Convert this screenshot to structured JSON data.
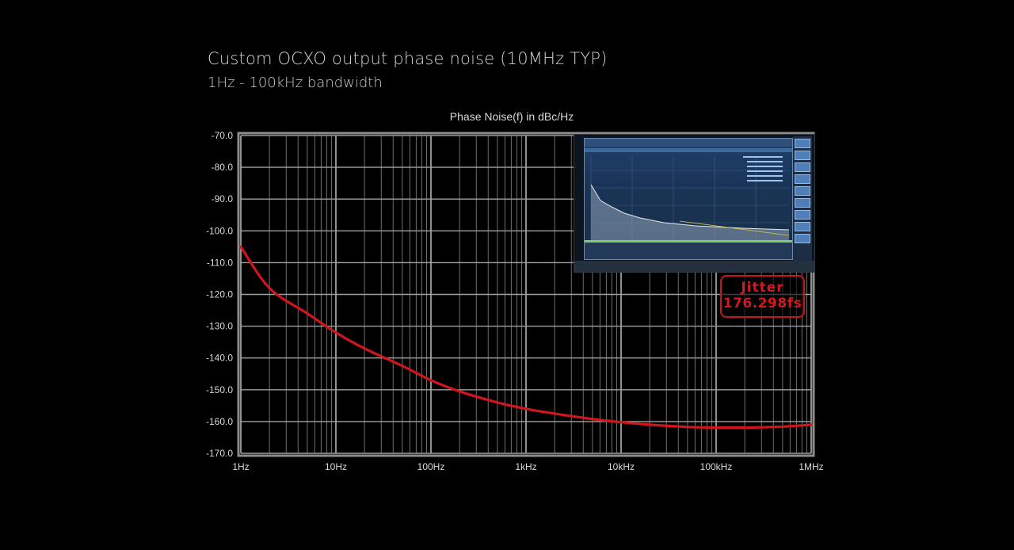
{
  "header": {
    "title": "Custom OCXO output phase noise (10MHz TYP)",
    "subtitle": "1Hz - 100kHz bandwidth"
  },
  "chart_data": {
    "type": "line",
    "title": "Phase Noise(f) in dBc/Hz",
    "xlabel": "",
    "ylabel": "",
    "x_scale": "log",
    "xlim": [
      1,
      1000000
    ],
    "ylim": [
      -170,
      -70
    ],
    "x_ticks": [
      {
        "value": 1,
        "label": "1Hz"
      },
      {
        "value": 10,
        "label": "10Hz"
      },
      {
        "value": 100,
        "label": "100Hz"
      },
      {
        "value": 1000,
        "label": "1kHz"
      },
      {
        "value": 10000,
        "label": "10kHz"
      },
      {
        "value": 100000,
        "label": "100kHz"
      },
      {
        "value": 1000000,
        "label": "1MHz"
      }
    ],
    "y_ticks": [
      {
        "value": -70,
        "label": "-70.0"
      },
      {
        "value": -80,
        "label": "-80.0"
      },
      {
        "value": -90,
        "label": "-90.0"
      },
      {
        "value": -100,
        "label": "-100.0"
      },
      {
        "value": -110,
        "label": "-110.0"
      },
      {
        "value": -120,
        "label": "-120.0"
      },
      {
        "value": -130,
        "label": "-130.0"
      },
      {
        "value": -140,
        "label": "-140.0"
      },
      {
        "value": -150,
        "label": "-150.0"
      },
      {
        "value": -160,
        "label": "-160.0"
      },
      {
        "value": -170,
        "label": "-170.0"
      }
    ],
    "grid": true,
    "series": [
      {
        "color": "#d0161c",
        "x": [
          1,
          2,
          5,
          10,
          20,
          50,
          100,
          200,
          500,
          1000,
          2000,
          5000,
          10000,
          20000,
          50000,
          100000,
          200000,
          500000,
          1000000
        ],
        "y": [
          -105,
          -118,
          -126,
          -132,
          -137,
          -142.5,
          -147,
          -150.5,
          -154,
          -156,
          -157.5,
          -159.2,
          -160.2,
          -161,
          -161.7,
          -161.9,
          -161.9,
          -161.6,
          -161
        ]
      }
    ]
  },
  "annotation": {
    "line1": "Jitter",
    "line2": "176.298fs"
  },
  "inset": {
    "icon": "spectrum-analyzer-screenshot"
  }
}
